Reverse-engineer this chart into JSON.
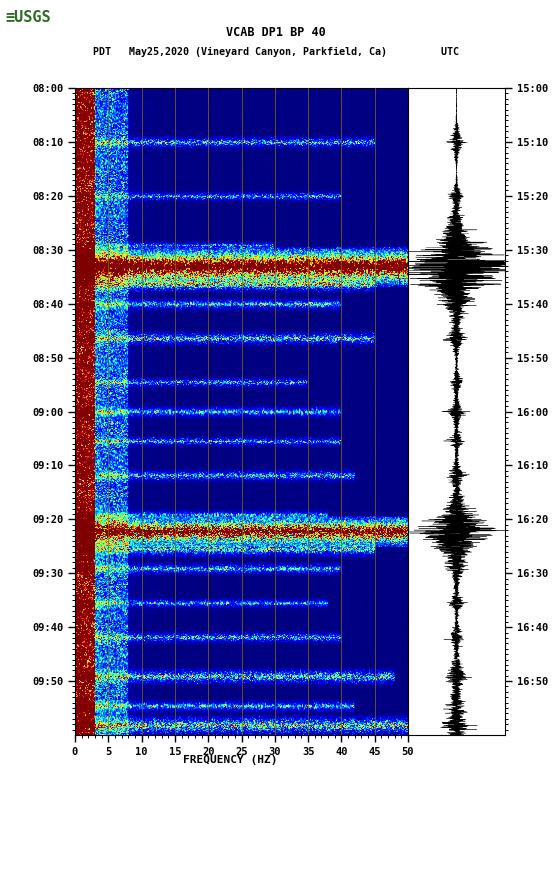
{
  "title_line1": "VCAB DP1 BP 40",
  "title_line2": "PDT   May25,2020 (Vineyard Canyon, Parkfield, Ca)         UTC",
  "xlabel": "FREQUENCY (HZ)",
  "left_yticks": [
    "08:00",
    "08:10",
    "08:20",
    "08:30",
    "08:40",
    "08:50",
    "09:00",
    "09:10",
    "09:20",
    "09:30",
    "09:40",
    "09:50"
  ],
  "right_yticks": [
    "15:00",
    "15:10",
    "15:20",
    "15:30",
    "15:40",
    "15:50",
    "16:00",
    "16:10",
    "16:20",
    "16:30",
    "16:40",
    "16:50"
  ],
  "xticks": [
    0,
    5,
    10,
    15,
    20,
    25,
    30,
    35,
    40,
    45,
    50
  ],
  "xmin": 0,
  "xmax": 50,
  "freq_lines": [
    5,
    10,
    15,
    20,
    25,
    30,
    35,
    40,
    45
  ],
  "bg_color": "white",
  "n_time": 660,
  "n_freq": 500,
  "random_seed": 42,
  "usgs_color": "#2D6A27",
  "vmin": 0,
  "vmax": 10
}
